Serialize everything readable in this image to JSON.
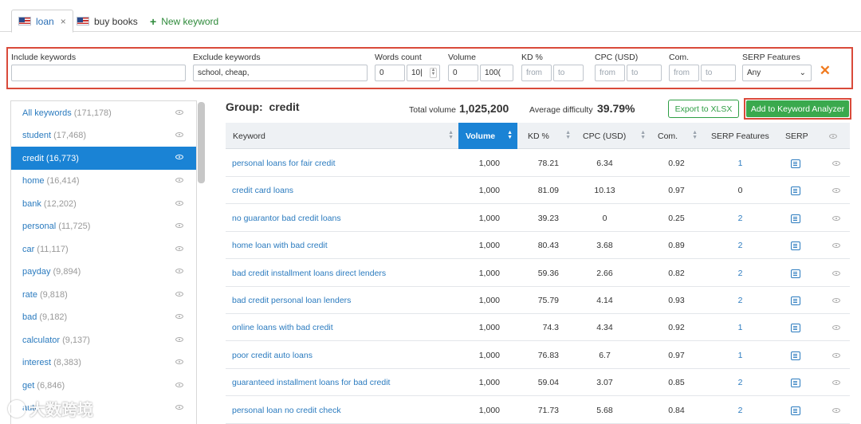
{
  "tabs": [
    {
      "label": "loan",
      "close": "×"
    },
    {
      "label": "buy books"
    },
    {
      "label": "New keyword",
      "icon": "+"
    }
  ],
  "filters": {
    "include_label": "Include keywords",
    "include_value": "",
    "exclude_label": "Exclude keywords",
    "exclude_value": "school, cheap,",
    "words_label": "Words count",
    "words_from": "0",
    "words_to": "10|",
    "volume_label": "Volume",
    "volume_from": "0",
    "volume_to": "100(",
    "kd_label": "KD %",
    "cpc_label": "CPC (USD)",
    "com_label": "Com.",
    "serp_label": "SERP Features",
    "serp_value": "Any",
    "from_placeholder": "from",
    "to_placeholder": "to",
    "clear_symbol": "✕"
  },
  "sidebar": {
    "items": [
      {
        "name": "All keywords",
        "count": "(171,178)"
      },
      {
        "name": "student",
        "count": "(17,468)"
      },
      {
        "name": "credit",
        "count": "(16,773)"
      },
      {
        "name": "home",
        "count": "(16,414)"
      },
      {
        "name": "bank",
        "count": "(12,202)"
      },
      {
        "name": "personal",
        "count": "(11,725)"
      },
      {
        "name": "car",
        "count": "(11,117)"
      },
      {
        "name": "payday",
        "count": "(9,894)"
      },
      {
        "name": "rate",
        "count": "(9,818)"
      },
      {
        "name": "bad",
        "count": "(9,182)"
      },
      {
        "name": "calculator",
        "count": "(9,137)"
      },
      {
        "name": "interest",
        "count": "(8,383)"
      },
      {
        "name": "get",
        "count": "(6,846)"
      },
      {
        "name": "auto",
        "count": ""
      }
    ]
  },
  "group": {
    "label": "Group:",
    "name": "credit",
    "total_volume_label": "Total volume",
    "total_volume": "1,025,200",
    "avg_difficulty_label": "Average difficulty",
    "avg_difficulty": "39.79%",
    "export_label": "Export to XLSX",
    "add_label": "Add to Keyword Analyzer"
  },
  "table": {
    "headers": {
      "keyword": "Keyword",
      "volume": "Volume",
      "kd": "KD %",
      "cpc": "CPC (USD)",
      "com": "Com.",
      "serp_features": "SERP Features",
      "serp": "SERP"
    },
    "rows": [
      {
        "keyword": "personal loans for fair credit",
        "volume": "1,000",
        "kd": "78.21",
        "cpc": "6.34",
        "com": "0.92",
        "serp": "1"
      },
      {
        "keyword": "credit card loans",
        "volume": "1,000",
        "kd": "81.09",
        "cpc": "10.13",
        "com": "0.97",
        "serp": "0"
      },
      {
        "keyword": "no guarantor bad credit loans",
        "volume": "1,000",
        "kd": "39.23",
        "cpc": "0",
        "com": "0.25",
        "serp": "2"
      },
      {
        "keyword": "home loan with bad credit",
        "volume": "1,000",
        "kd": "80.43",
        "cpc": "3.68",
        "com": "0.89",
        "serp": "2"
      },
      {
        "keyword": "bad credit installment loans direct lenders",
        "volume": "1,000",
        "kd": "59.36",
        "cpc": "2.66",
        "com": "0.82",
        "serp": "2"
      },
      {
        "keyword": "bad credit personal loan lenders",
        "volume": "1,000",
        "kd": "75.79",
        "cpc": "4.14",
        "com": "0.93",
        "serp": "2"
      },
      {
        "keyword": "online loans with bad credit",
        "volume": "1,000",
        "kd": "74.3",
        "cpc": "4.34",
        "com": "0.92",
        "serp": "1"
      },
      {
        "keyword": "poor credit auto loans",
        "volume": "1,000",
        "kd": "76.83",
        "cpc": "6.7",
        "com": "0.97",
        "serp": "1"
      },
      {
        "keyword": "guaranteed installment loans for bad credit",
        "volume": "1,000",
        "kd": "59.04",
        "cpc": "3.07",
        "com": "0.85",
        "serp": "2"
      },
      {
        "keyword": "personal loan no credit check",
        "volume": "1,000",
        "kd": "71.73",
        "cpc": "5.68",
        "com": "0.84",
        "serp": "2"
      }
    ]
  },
  "watermark": "大数跨境",
  "colors": {
    "accent_blue": "#1a83d5",
    "link_blue": "#2b7bbf",
    "green": "#3aa94d",
    "red_outline": "#d94a3a",
    "orange": "#f07b20"
  }
}
